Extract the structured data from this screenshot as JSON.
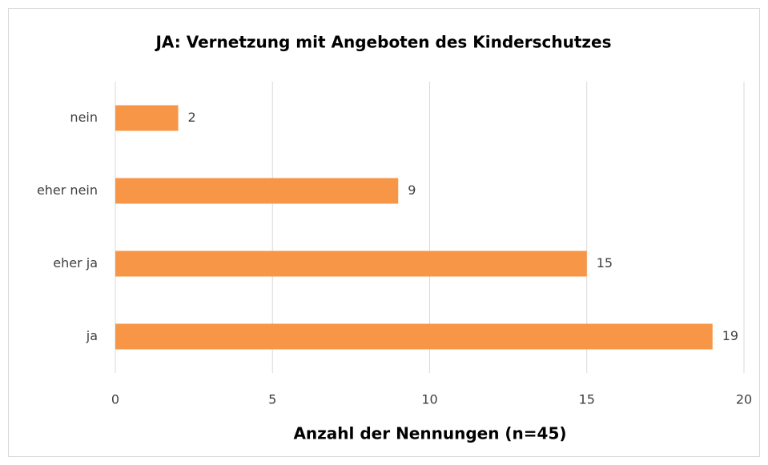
{
  "chart_data": {
    "type": "barh",
    "title": "JA: Vernetzung mit Angeboten des Kinderschutzes",
    "x_label": "Anzahl der Nennungen (n=45)",
    "categories": [
      "nein",
      "eher nein",
      "eher ja",
      "ja"
    ],
    "values": [
      2,
      9,
      15,
      19
    ],
    "color": "#f79646",
    "xlim": [
      0,
      20
    ],
    "xticks": [
      0,
      5,
      10,
      15,
      20
    ],
    "grid": true
  }
}
